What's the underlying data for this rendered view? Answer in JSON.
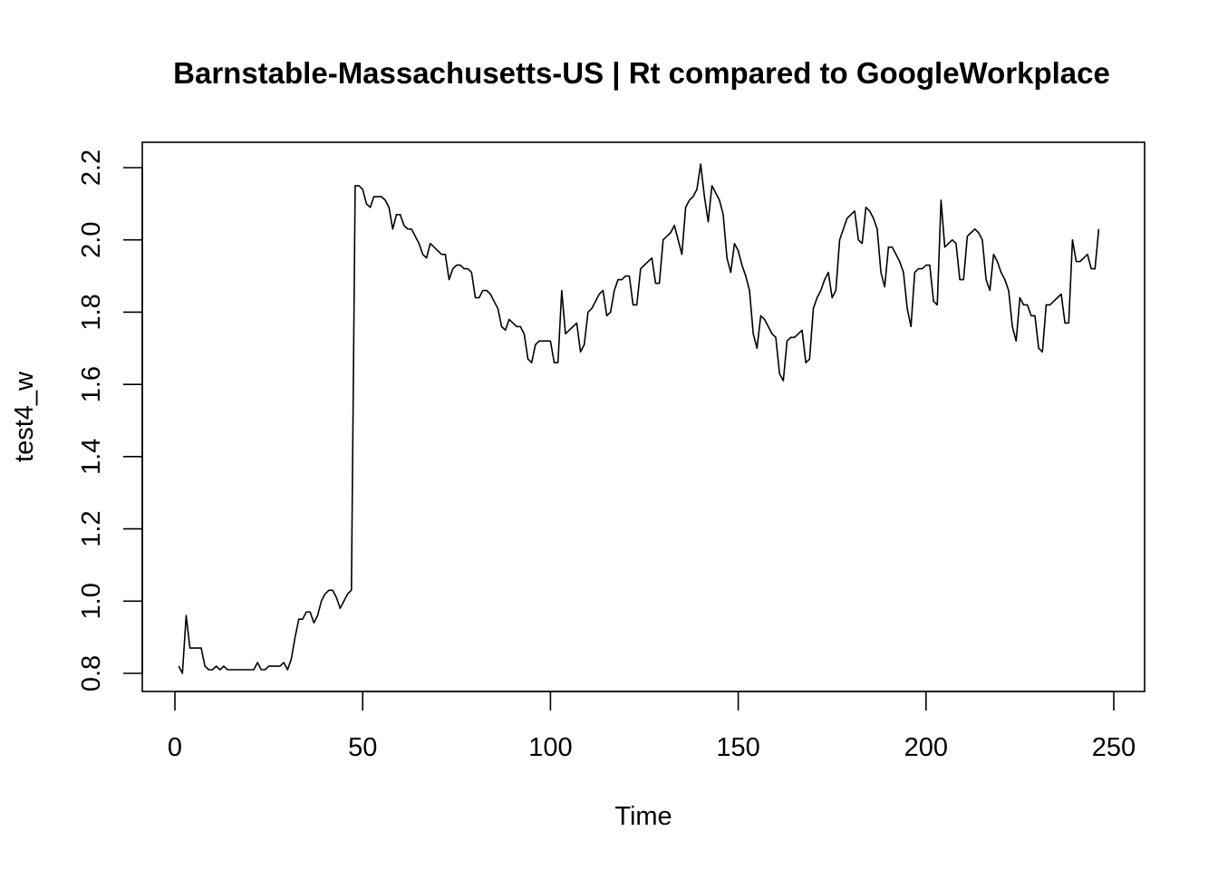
{
  "chart_data": {
    "type": "line",
    "title": "Barnstable-Massachusetts-US | Rt compared to GoogleWorkplace",
    "xlabel": "Time",
    "ylabel": "test4_w",
    "xlim": [
      1,
      248
    ],
    "ylim": [
      0.8,
      2.2
    ],
    "x_ticks": [
      0,
      50,
      100,
      150,
      200,
      250
    ],
    "x_tick_labels": [
      "0",
      "50",
      "100",
      "150",
      "200",
      "250"
    ],
    "y_ticks": [
      0.8,
      1.0,
      1.2,
      1.4,
      1.6,
      1.8,
      2.0,
      2.2
    ],
    "y_tick_labels": [
      "0.8",
      "1.0",
      "1.2",
      "1.4",
      "1.6",
      "1.8",
      "2.0",
      "2.2"
    ],
    "grid": false,
    "legend": "none",
    "series": [
      {
        "x_start": 1,
        "x_step": 1,
        "values": [
          0.82,
          0.8,
          0.96,
          0.87,
          0.87,
          0.87,
          0.87,
          0.82,
          0.81,
          0.81,
          0.82,
          0.81,
          0.82,
          0.81,
          0.81,
          0.81,
          0.81,
          0.81,
          0.81,
          0.81,
          0.81,
          0.83,
          0.81,
          0.81,
          0.82,
          0.82,
          0.82,
          0.82,
          0.83,
          0.81,
          0.84,
          0.9,
          0.95,
          0.95,
          0.97,
          0.97,
          0.94,
          0.96,
          1.0,
          1.02,
          1.03,
          1.03,
          1.01,
          0.98,
          1.0,
          1.02,
          1.03,
          2.15,
          2.15,
          2.14,
          2.1,
          2.09,
          2.12,
          2.12,
          2.12,
          2.11,
          2.09,
          2.03,
          2.07,
          2.07,
          2.04,
          2.03,
          2.03,
          2.01,
          1.99,
          1.96,
          1.95,
          1.99,
          1.98,
          1.97,
          1.96,
          1.96,
          1.89,
          1.92,
          1.93,
          1.93,
          1.92,
          1.92,
          1.91,
          1.84,
          1.84,
          1.86,
          1.86,
          1.85,
          1.83,
          1.81,
          1.76,
          1.75,
          1.78,
          1.77,
          1.76,
          1.76,
          1.74,
          1.67,
          1.66,
          1.71,
          1.72,
          1.72,
          1.72,
          1.72,
          1.66,
          1.66,
          1.86,
          1.74,
          1.75,
          1.76,
          1.77,
          1.69,
          1.71,
          1.8,
          1.81,
          1.83,
          1.85,
          1.86,
          1.79,
          1.8,
          1.86,
          1.89,
          1.89,
          1.9,
          1.9,
          1.82,
          1.82,
          1.92,
          1.93,
          1.94,
          1.95,
          1.88,
          1.88,
          2.0,
          2.01,
          2.02,
          2.04,
          2.0,
          1.96,
          2.09,
          2.11,
          2.12,
          2.14,
          2.21,
          2.12,
          2.05,
          2.15,
          2.13,
          2.11,
          2.07,
          1.95,
          1.91,
          1.99,
          1.97,
          1.93,
          1.9,
          1.86,
          1.74,
          1.7,
          1.79,
          1.78,
          1.76,
          1.74,
          1.73,
          1.63,
          1.61,
          1.72,
          1.73,
          1.73,
          1.74,
          1.75,
          1.66,
          1.67,
          1.81,
          1.84,
          1.86,
          1.89,
          1.91,
          1.84,
          1.86,
          2.0,
          2.03,
          2.06,
          2.07,
          2.08,
          2.0,
          1.99,
          2.09,
          2.08,
          2.06,
          2.03,
          1.91,
          1.87,
          1.98,
          1.98,
          1.96,
          1.94,
          1.91,
          1.81,
          1.76,
          1.91,
          1.92,
          1.92,
          1.93,
          1.93,
          1.83,
          1.82,
          2.11,
          1.98,
          1.99,
          2.0,
          1.99,
          1.89,
          1.89,
          2.01,
          2.02,
          2.03,
          2.02,
          2.0,
          1.89,
          1.86,
          1.96,
          1.94,
          1.91,
          1.89,
          1.86,
          1.76,
          1.72,
          1.84,
          1.82,
          1.82,
          1.79,
          1.79,
          1.7,
          1.69,
          1.82,
          1.82,
          1.83,
          1.84,
          1.85,
          1.77,
          1.77,
          2.0,
          1.94,
          1.94,
          1.95,
          1.96,
          1.92,
          1.92,
          2.03
        ]
      }
    ],
    "colors": {
      "line": "#000000",
      "frame": "#000000",
      "background": "#ffffff"
    }
  }
}
